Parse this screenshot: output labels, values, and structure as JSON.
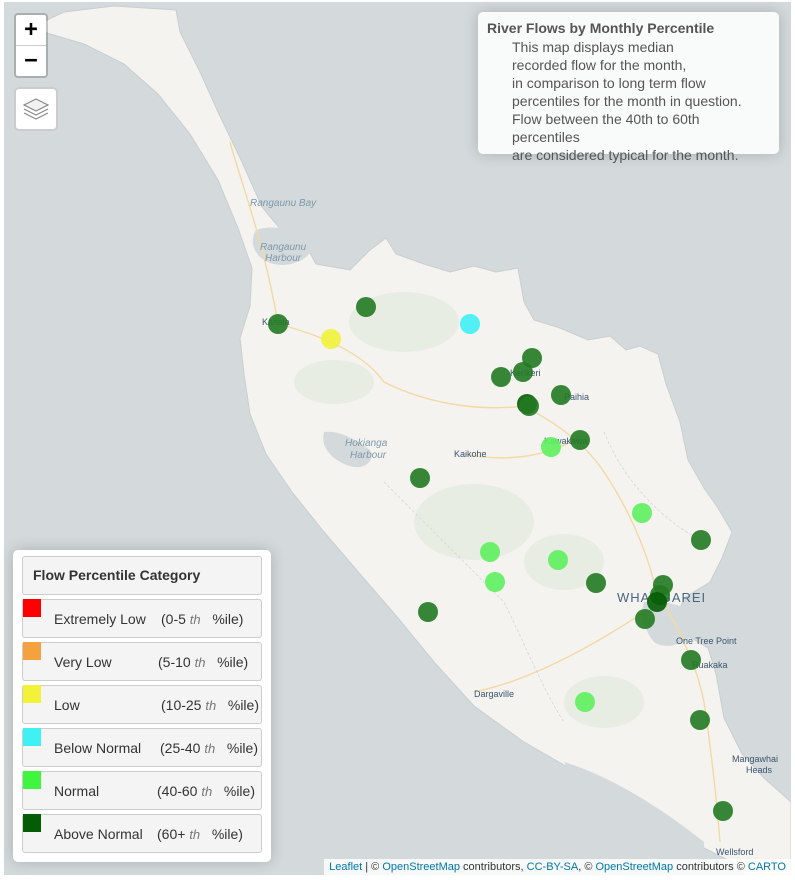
{
  "map": {
    "zoom_in_label": "+",
    "zoom_out_label": "−",
    "layers_icon": "layers-icon"
  },
  "info": {
    "title": "River Flows by Monthly Percentile",
    "lines": [
      "This map displays median",
      "recorded flow for the month,",
      "in comparison to long term flow",
      "percentiles for the month in question.",
      "Flow between the 40th to 60th percentiles",
      "are considered typical for the month."
    ]
  },
  "legend": {
    "title": "Flow Percentile Category",
    "items": [
      {
        "label": "Extremely Low",
        "range_start": "(0-5",
        "range_th": "th",
        "range_end": "%ile)",
        "color": "#ff0000"
      },
      {
        "label": "Very Low",
        "range_start": "(5-10",
        "range_th": "th",
        "range_end": "%ile)",
        "color": "#f5a140"
      },
      {
        "label": "Low",
        "range_start": "(10-25",
        "range_th": "th",
        "range_end": "%ile)",
        "color": "#f2f23a"
      },
      {
        "label": "Below Normal",
        "range_start": "(25-40",
        "range_th": "th",
        "range_end": "%ile)",
        "color": "#3ff0f5"
      },
      {
        "label": "Normal",
        "range_start": "(40-60",
        "range_th": "th",
        "range_end": "%ile)",
        "color": "#3ff53f"
      },
      {
        "label": "Above Normal",
        "range_start": "(60+",
        "range_th": "th",
        "range_end": "%ile)",
        "color": "#045c04"
      }
    ]
  },
  "places": {
    "rangaunu_bay": "Rangaunu Bay",
    "rangaunu_harbour_1": "Rangaunu",
    "rangaunu_harbour_2": "Harbour",
    "kaitaia": "Kaitaia",
    "kerikeri": "Kerikeri",
    "paihia": "Paihia",
    "kawakawa": "Kawakawa",
    "kaikohe": "Kaikohe",
    "hokianga_1": "Hokianga",
    "hokianga_2": "Harbour",
    "whangarei": "WHANGAREI",
    "one_tree_point": "One Tree Point",
    "ruakaka": "Ruakaka",
    "dargaville": "Dargaville",
    "mangawhai_1": "Mangawhai",
    "mangawhai_2": "Heads",
    "wellsford": "Wellsford"
  },
  "attribution": {
    "leaflet": "Leaflet",
    "sep1": " | © ",
    "osm1": "OpenStreetMap",
    "mid1": " contributors, ",
    "ccbysa": "CC-BY-SA",
    "mid2": ", © ",
    "osm2": "OpenStreetMap",
    "mid3": " contributors © ",
    "carto": "CARTO"
  }
}
